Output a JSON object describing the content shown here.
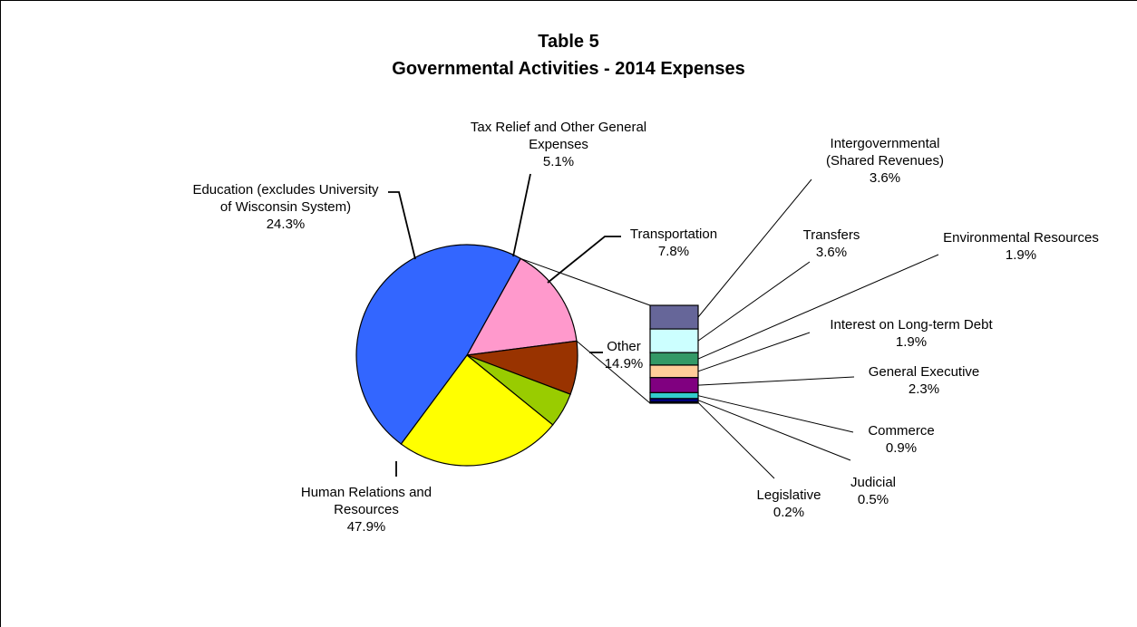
{
  "chart_data": {
    "type": "pie",
    "title": "Table 5",
    "subtitle": "Governmental Activities - 2014 Expenses",
    "slices": [
      {
        "name": "Human Relations and Resources",
        "value": 47.9,
        "label": "47.9%",
        "color": "#3366ff"
      },
      {
        "name": "Education (excludes University of Wisconsin System)",
        "value": 24.3,
        "label": "24.3%",
        "color": "#ffff00"
      },
      {
        "name": "Tax Relief and Other General Expenses",
        "value": 5.1,
        "label": "5.1%",
        "color": "#99cc00"
      },
      {
        "name": "Transportation",
        "value": 7.8,
        "label": "7.8%",
        "color": "#993300"
      },
      {
        "name": "Other",
        "value": 14.9,
        "label": "14.9%",
        "color": "#ff99cc"
      }
    ],
    "other_breakdown": [
      {
        "name": "Intergovernmental (Shared Revenues)",
        "value": 3.6,
        "label": "3.6%",
        "color": "#666699"
      },
      {
        "name": "Transfers",
        "value": 3.6,
        "label": "3.6%",
        "color": "#ccffff"
      },
      {
        "name": "Environmental Resources",
        "value": 1.9,
        "label": "1.9%",
        "color": "#339966"
      },
      {
        "name": "Interest on Long-term Debt",
        "value": 1.9,
        "label": "1.9%",
        "color": "#ffcc99"
      },
      {
        "name": "General Executive",
        "value": 2.3,
        "label": "2.3%",
        "color": "#800080"
      },
      {
        "name": "Commerce",
        "value": 0.9,
        "label": "0.9%",
        "color": "#33cccc"
      },
      {
        "name": "Judicial",
        "value": 0.5,
        "label": "0.5%",
        "color": "#000080"
      },
      {
        "name": "Legislative",
        "value": 0.2,
        "label": "0.2%",
        "color": "#000000"
      }
    ]
  }
}
